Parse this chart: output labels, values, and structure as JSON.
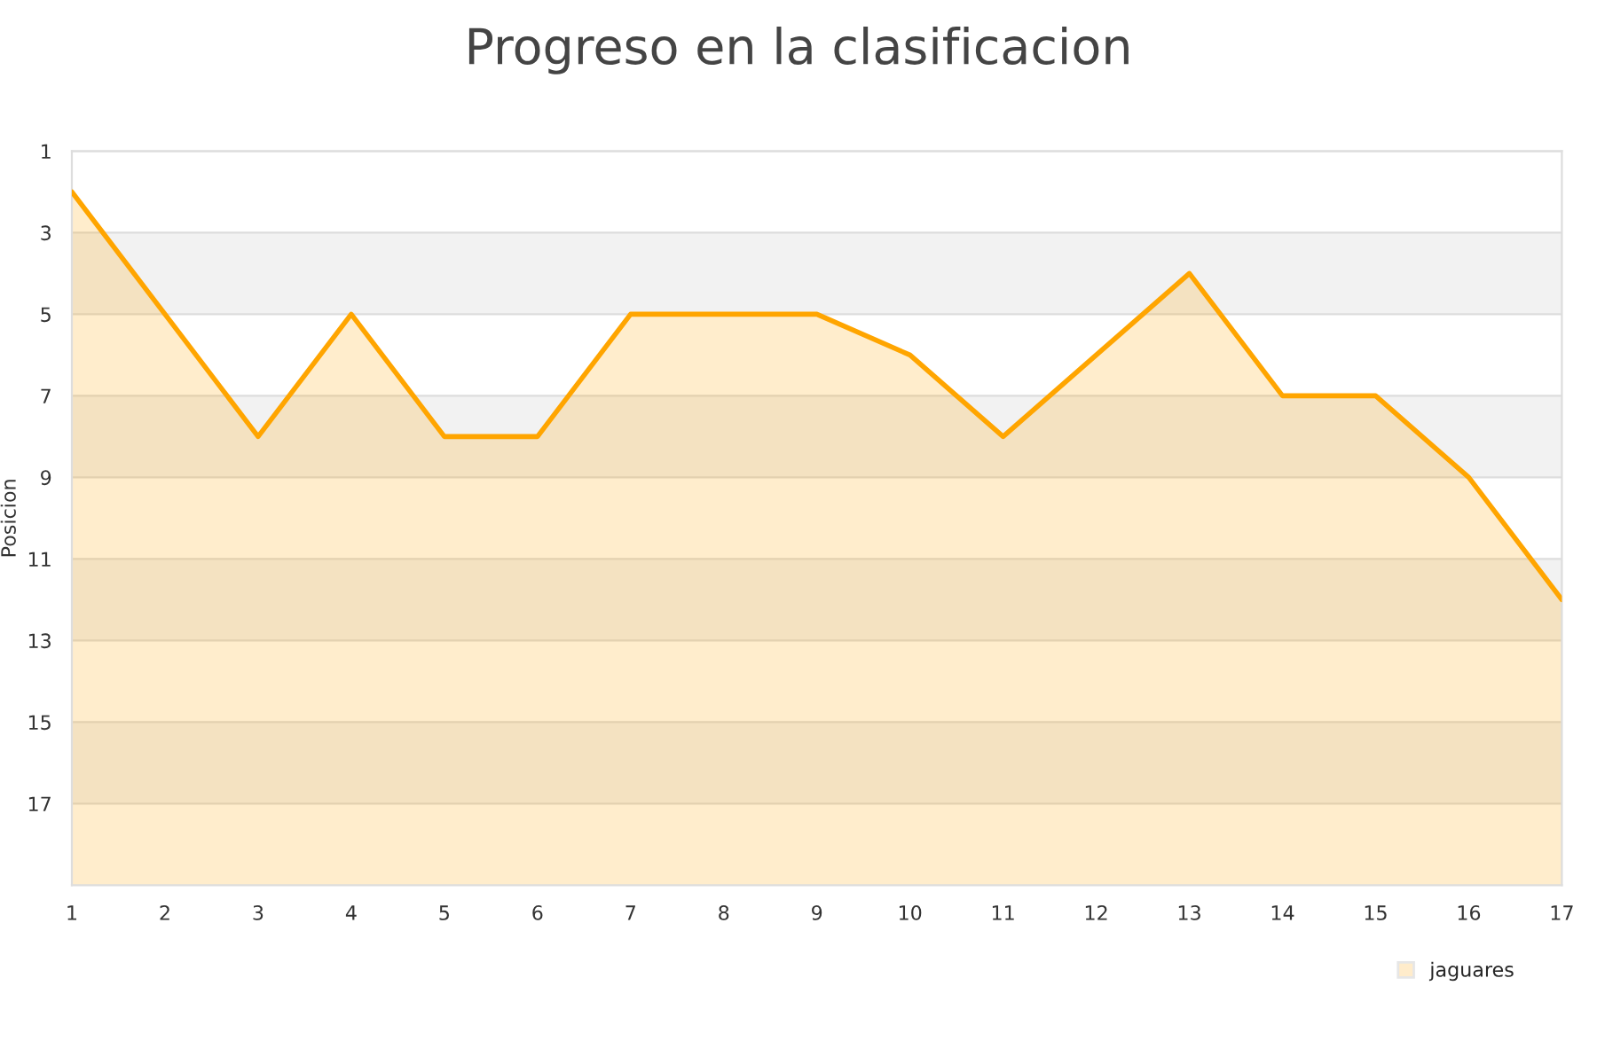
{
  "chart_data": {
    "type": "line",
    "title": "Progreso en la clasificacion",
    "ylabel": "Posicion",
    "x": [
      1,
      2,
      3,
      4,
      5,
      6,
      7,
      8,
      9,
      10,
      11,
      12,
      13,
      14,
      15,
      16,
      17
    ],
    "series": [
      {
        "name": "jaguares",
        "color": "#ffa500",
        "values": [
          2,
          5,
          8,
          5,
          8,
          8,
          5,
          5,
          5,
          6,
          8,
          6,
          4,
          7,
          7,
          9,
          12
        ],
        "lower": [
          2,
          5,
          8,
          5,
          8,
          8,
          5,
          5,
          5,
          6,
          8,
          6,
          4,
          7,
          7,
          9,
          12
        ],
        "upper": [
          19,
          19,
          19,
          19,
          19,
          19,
          19,
          19,
          19,
          19,
          19,
          19,
          19,
          19,
          19,
          19,
          19
        ]
      }
    ],
    "xlim": [
      1,
      17
    ],
    "xticks": [
      1,
      2,
      3,
      4,
      5,
      6,
      7,
      8,
      9,
      10,
      11,
      12,
      13,
      14,
      15,
      16,
      17
    ],
    "ylim": [
      19,
      1
    ],
    "yticks": [
      1,
      3,
      5,
      7,
      9,
      11,
      13,
      15,
      17
    ],
    "bands": [
      {
        "axis": "y",
        "from": 3,
        "to": 5,
        "color": "#f2f2f2"
      },
      {
        "axis": "y",
        "from": 7,
        "to": 9,
        "color": "#f2f2f2"
      },
      {
        "axis": "y",
        "from": 11,
        "to": 13,
        "color": "#f2f2f2"
      },
      {
        "axis": "y",
        "from": 15,
        "to": 17,
        "color": "#f2f2f2"
      }
    ],
    "grid": "y",
    "legend": "bottom right",
    "marker": "none",
    "line_style": "solid"
  }
}
